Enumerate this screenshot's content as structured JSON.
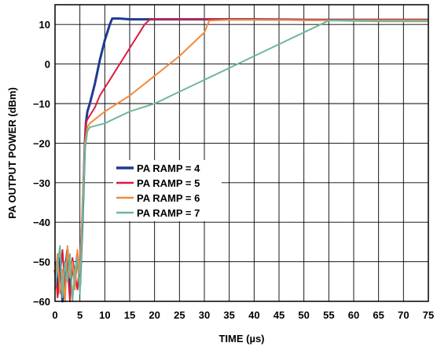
{
  "chart_data": {
    "type": "line",
    "title": "",
    "xlabel": "TIME (µs)",
    "ylabel": "PA OUTPUT POWER (dBm)",
    "xlim": [
      0,
      75
    ],
    "ylim": [
      -60,
      15
    ],
    "xticks": [
      0,
      5,
      10,
      15,
      20,
      25,
      30,
      35,
      40,
      45,
      50,
      55,
      60,
      65,
      70,
      75
    ],
    "yticks": [
      -60,
      -50,
      -40,
      -30,
      -20,
      -10,
      0,
      10
    ],
    "grid": true,
    "legend_position": "center-left",
    "series": [
      {
        "name": "PA RAMP = 4",
        "color": "#1f3a93",
        "x": [
          0,
          0.5,
          1,
          1.5,
          2,
          2.5,
          3,
          3.5,
          4,
          4.5,
          5,
          5.5,
          6,
          6.2,
          6.5,
          7,
          8,
          9,
          10,
          11,
          11.5,
          12,
          13,
          15,
          20,
          30,
          40,
          50,
          60,
          70,
          75
        ],
        "y": [
          -52,
          -57,
          -49,
          -60,
          -53,
          -47,
          -58,
          -50,
          -55,
          -48,
          -56,
          -40,
          -20,
          -15,
          -12,
          -10,
          -5,
          1,
          6,
          10,
          11.5,
          11.5,
          11.5,
          11.3,
          11.3,
          11.3,
          11.3,
          11.2,
          11.2,
          11.2,
          11.2
        ]
      },
      {
        "name": "PA RAMP = 5",
        "color": "#e0193d",
        "x": [
          0,
          0.5,
          1,
          1.5,
          2,
          2.5,
          3,
          3.5,
          4,
          4.5,
          5,
          5.5,
          6,
          6.2,
          6.5,
          7,
          8,
          9,
          10,
          11,
          12,
          13,
          14,
          15,
          16,
          17,
          18,
          19,
          20,
          30,
          40,
          50,
          60,
          70,
          75
        ],
        "y": [
          -50,
          -59,
          -54,
          -47,
          -56,
          -51,
          -60,
          -49,
          -53,
          -57,
          -50,
          -38,
          -20,
          -15,
          -14,
          -13,
          -11,
          -8,
          -6,
          -4,
          -2,
          0,
          2,
          4,
          6,
          8,
          10,
          11.2,
          11.3,
          11.3,
          11.3,
          11.2,
          11.2,
          11.2,
          11.2
        ]
      },
      {
        "name": "PA RAMP = 6",
        "color": "#f28a3c",
        "x": [
          0,
          0.5,
          1,
          1.5,
          2,
          2.5,
          3,
          3.5,
          4,
          4.5,
          5,
          5.5,
          6,
          6.5,
          7,
          10,
          15,
          20,
          25,
          30,
          31,
          35,
          40,
          50,
          60,
          70,
          75
        ],
        "y": [
          -55,
          -48,
          -58,
          -52,
          -60,
          -46,
          -54,
          -50,
          -57,
          -47,
          -53,
          -36,
          -20,
          -16,
          -15,
          -12,
          -8,
          -3,
          2,
          8,
          11,
          11.2,
          11.2,
          11.1,
          11.1,
          11.1,
          11.1
        ]
      },
      {
        "name": "PA RAMP = 7",
        "color": "#6db89a",
        "x": [
          0,
          0.5,
          1,
          1.5,
          2,
          2.5,
          3,
          3.5,
          4,
          4.5,
          5,
          5.5,
          6,
          6.5,
          7,
          10,
          15,
          20,
          25,
          30,
          35,
          40,
          45,
          50,
          55,
          56,
          60,
          65,
          70,
          75
        ],
        "y": [
          -57,
          -51,
          -46,
          -59,
          -50,
          -55,
          -48,
          -60,
          -52,
          -49,
          -58,
          -40,
          -22,
          -17,
          -16,
          -15,
          -12,
          -10,
          -7,
          -4,
          -1,
          2,
          5,
          8,
          11,
          11,
          10.9,
          10.8,
          10.8,
          10.8
        ]
      }
    ]
  }
}
